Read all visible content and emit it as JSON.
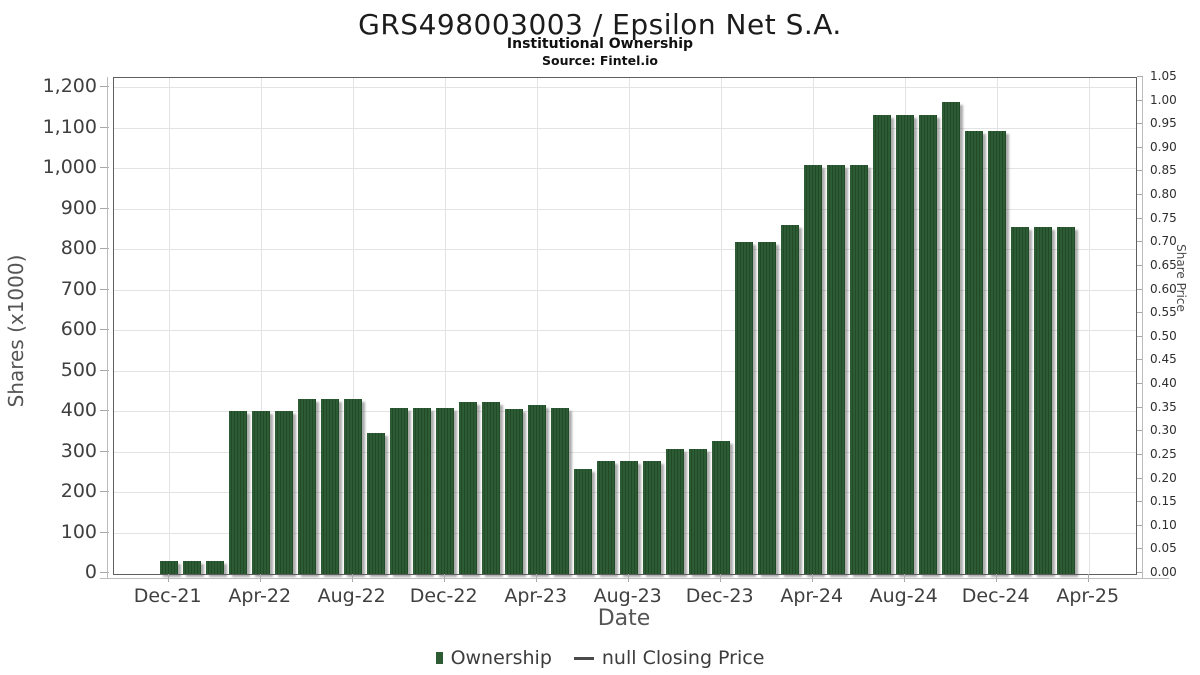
{
  "header": {
    "title": "GRS498003003 / Epsilon Net S.A.",
    "subtitle": "Institutional Ownership",
    "source": "Source: Fintel.io"
  },
  "chart_data": {
    "type": "bar",
    "title": "GRS498003003 / Epsilon Net S.A.",
    "subtitle": "Institutional Ownership",
    "source": "Source: Fintel.io",
    "xlabel": "Date",
    "ylabel": "Shares (x1000)",
    "ylabel_right": "Share Price",
    "ylim": [
      0,
      1200
    ],
    "ylim_right": [
      0,
      1.05
    ],
    "grid": true,
    "legend_position": "bottom",
    "categories": [
      "Dec-21",
      "Jan-22",
      "Feb-22",
      "Mar-22",
      "Apr-22",
      "May-22",
      "Jun-22",
      "Jul-22",
      "Aug-22",
      "Sep-22",
      "Oct-22",
      "Nov-22",
      "Dec-22",
      "Jan-23",
      "Feb-23",
      "Mar-23",
      "Apr-23",
      "May-23",
      "Jun-23",
      "Jul-23",
      "Aug-23",
      "Sep-23",
      "Oct-23",
      "Nov-23",
      "Dec-23",
      "Jan-24",
      "Feb-24",
      "Mar-24",
      "Apr-24",
      "May-24",
      "Jun-24",
      "Jul-24",
      "Aug-24",
      "Sep-24",
      "Oct-24",
      "Nov-24",
      "Dec-24",
      "Jan-25",
      "Feb-25",
      "Mar-25"
    ],
    "series": [
      {
        "name": "Ownership",
        "type": "bar",
        "values": [
          33,
          33,
          33,
          403,
          403,
          403,
          432,
          432,
          432,
          348,
          410,
          410,
          410,
          424,
          424,
          407,
          417,
          411,
          259,
          279,
          279,
          279,
          308,
          308,
          328,
          820,
          820,
          862,
          1010,
          1010,
          1010,
          1133,
          1133,
          1133,
          1165,
          1095,
          1095,
          858,
          858,
          858
        ]
      },
      {
        "name": "null Closing Price",
        "type": "line",
        "values": []
      }
    ],
    "x_tick_labels": [
      "Dec-21",
      "Apr-22",
      "Aug-22",
      "Dec-22",
      "Apr-23",
      "Aug-23",
      "Dec-23",
      "Apr-24",
      "Aug-24",
      "Dec-24",
      "Apr-25"
    ],
    "x_tick_month_index": [
      0,
      4,
      8,
      12,
      16,
      20,
      24,
      28,
      32,
      36,
      40
    ],
    "y_tick_labels": [
      "0",
      "100",
      "200",
      "300",
      "400",
      "500",
      "600",
      "700",
      "800",
      "900",
      "1,000",
      "1,100",
      "1,200"
    ],
    "y_tick_values": [
      0,
      100,
      200,
      300,
      400,
      500,
      600,
      700,
      800,
      900,
      1000,
      1100,
      1200
    ],
    "y_right_tick_labels": [
      "0.00",
      "0.05",
      "0.10",
      "0.15",
      "0.20",
      "0.25",
      "0.30",
      "0.35",
      "0.40",
      "0.45",
      "0.50",
      "0.55",
      "0.60",
      "0.65",
      "0.70",
      "0.75",
      "0.80",
      "0.85",
      "0.90",
      "0.95",
      "1.00",
      "1.05"
    ],
    "y_right_tick_values": [
      0,
      0.05,
      0.1,
      0.15,
      0.2,
      0.25,
      0.3,
      0.35,
      0.4,
      0.45,
      0.5,
      0.55,
      0.6,
      0.65,
      0.7,
      0.75,
      0.8,
      0.85,
      0.9,
      0.95,
      1.0,
      1.05
    ]
  },
  "legend": {
    "items": [
      {
        "label": "Ownership",
        "marker": "square",
        "color": "#2d5b33"
      },
      {
        "label": "null Closing Price",
        "marker": "line",
        "color": "#4a4a4a"
      }
    ]
  },
  "colors": {
    "bar": "#2d5b33",
    "bar_stripe": "#214a28",
    "grid": "#e3e3e3",
    "axis": "#bcbcbc",
    "tick": "#a8a8a8",
    "plot_border": "#5f5f5f"
  }
}
